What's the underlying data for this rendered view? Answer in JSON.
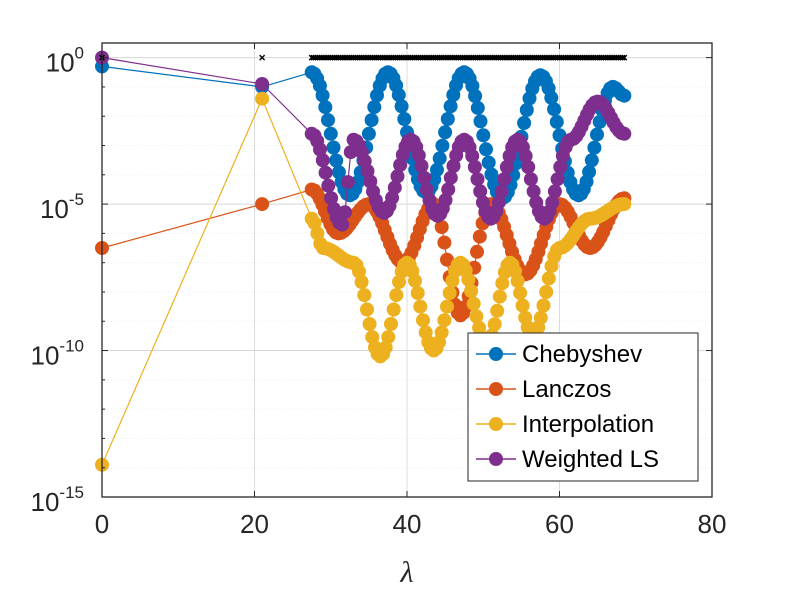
{
  "chart_data": {
    "type": "scatter",
    "title": "",
    "xlabel": "λ",
    "ylabel": "",
    "xlim": [
      0,
      80
    ],
    "ylim_log10": [
      -15,
      0.5
    ],
    "yscale": "log",
    "grid": true,
    "x_ticks": [
      0,
      20,
      40,
      60,
      80
    ],
    "x_tick_labels": [
      "0",
      "20",
      "40",
      "60",
      "80"
    ],
    "y_ticks": [
      {
        "base": "10",
        "exp": "-15",
        "log10": -15
      },
      {
        "base": "10",
        "exp": "-10",
        "log10": -10
      },
      {
        "base": "10",
        "exp": "-5",
        "log10": -5
      },
      {
        "base": "10",
        "exp": "0",
        "log10": 0
      }
    ],
    "legend_position": "bottom-right",
    "eigenvalue_markers": {
      "marker": "x",
      "color": "#000000",
      "log10_y": 0,
      "x": [
        0,
        21,
        27.5,
        68.5
      ]
    },
    "series": [
      {
        "name": "Chebyshev",
        "color": "#0072BD",
        "x": [
          0,
          21,
          27.5,
          32.5,
          37.5,
          42.5,
          47.5,
          52.5,
          57.5,
          62.5,
          67,
          68.5
        ],
        "log10_y": [
          -0.3,
          -1.0,
          -0.5,
          -4.7,
          -0.5,
          -4.6,
          -0.5,
          -4.8,
          -0.6,
          -4.7,
          -1.0,
          -1.3
        ]
      },
      {
        "name": "Lanczos",
        "color": "#D95319",
        "x": [
          0,
          21,
          27.5,
          31,
          35,
          39.5,
          43.5,
          47,
          51,
          55.5,
          60,
          64,
          68.5
        ],
        "log10_y": [
          -6.5,
          -5.0,
          -4.5,
          -6.0,
          -5.0,
          -7.0,
          -5.0,
          -8.8,
          -5.0,
          -7.4,
          -5.0,
          -6.5,
          -4.8
        ]
      },
      {
        "name": "Interpolation",
        "color": "#EDB120",
        "x": [
          0,
          21,
          27.5,
          29,
          33,
          36.5,
          40,
          43.5,
          47,
          50.5,
          53.5,
          56.5,
          60,
          64,
          68.5
        ],
        "log10_y": [
          -13.9,
          -1.4,
          -5.5,
          -6.5,
          -7.0,
          -10.2,
          -7.0,
          -10.0,
          -7.0,
          -9.8,
          -7.0,
          -9.5,
          -6.5,
          -5.5,
          -5.0
        ]
      },
      {
        "name": "Weighted LS",
        "color": "#7E2F8E",
        "x": [
          0,
          21,
          27.5,
          31.5,
          33,
          37,
          40.5,
          44,
          47.5,
          51,
          54.5,
          58,
          61.5,
          65,
          68.5
        ],
        "log10_y": [
          0.0,
          -0.9,
          -2.6,
          -5.7,
          -2.8,
          -5.3,
          -2.8,
          -5.4,
          -2.8,
          -5.5,
          -2.8,
          -5.5,
          -2.8,
          -1.5,
          -2.6
        ]
      }
    ]
  }
}
